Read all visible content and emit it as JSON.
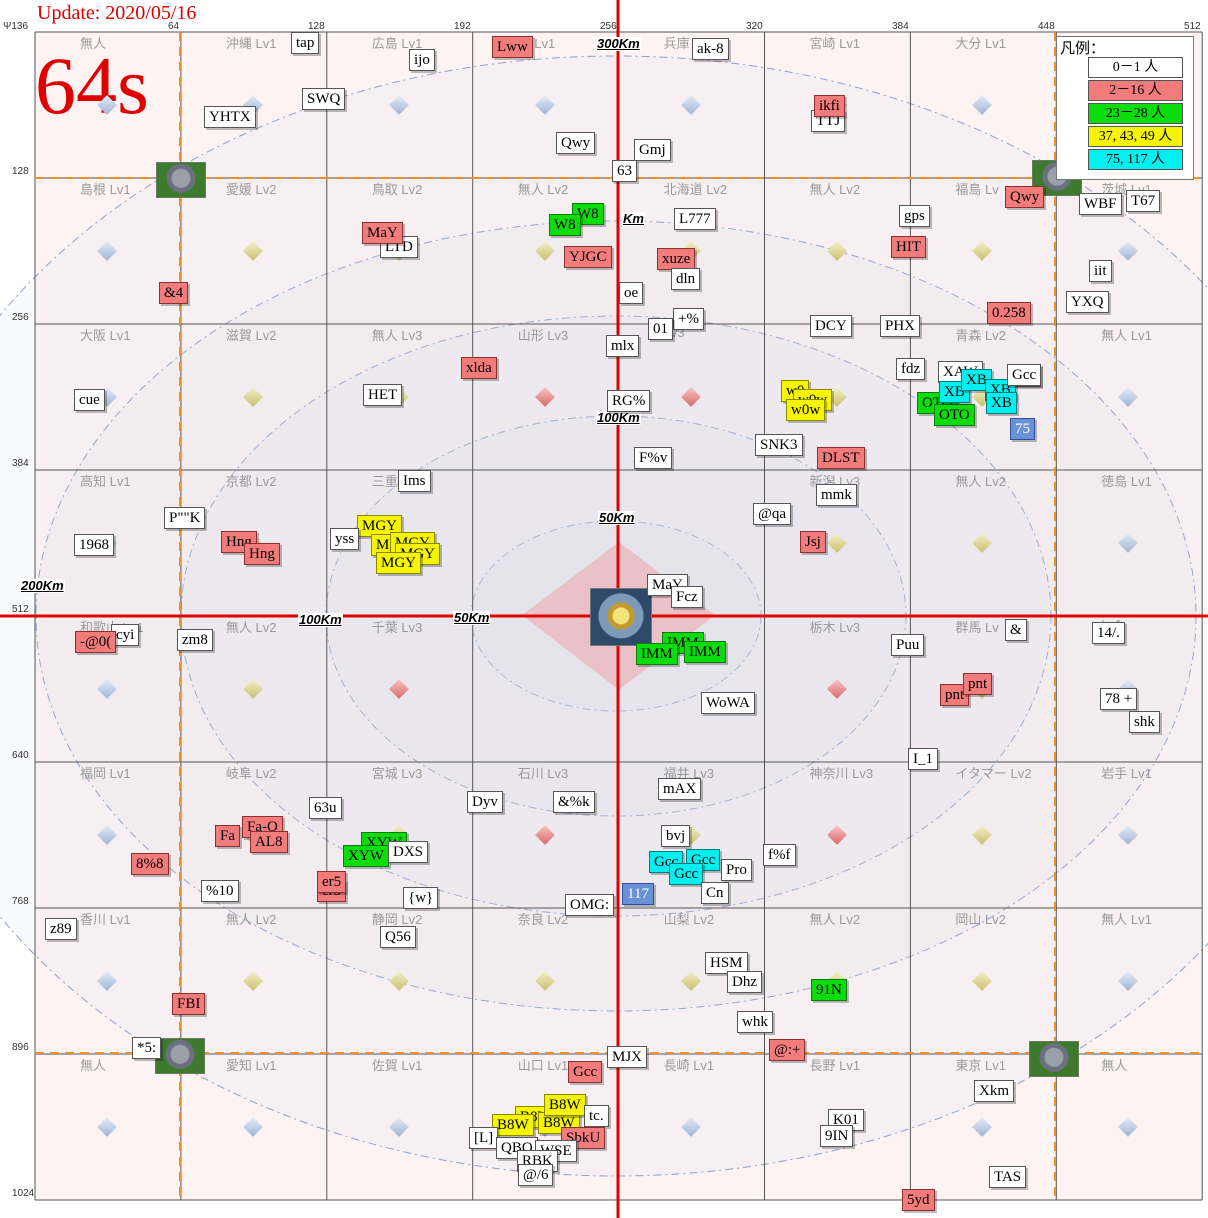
{
  "header": {
    "update": "Update: 2020/05/16",
    "timer": "64s"
  },
  "legend": {
    "title": "凡例：",
    "items": [
      {
        "label": "0－1 人",
        "color": "#ffffff"
      },
      {
        "label": "2－16 人",
        "color": "#f27b7b"
      },
      {
        "label": "23－28 人",
        "color": "#0bdc0b"
      },
      {
        "label": "37, 43, 49 人",
        "color": "#f5f500"
      },
      {
        "label": "75, 117 人",
        "color": "#00f0f0"
      }
    ]
  },
  "axis": {
    "x_ticks": [
      "Ψ136",
      "64",
      "128",
      "192",
      "256",
      "320",
      "384",
      "448",
      "512"
    ],
    "y_ticks": [
      "128",
      "256",
      "384",
      "512",
      "640",
      "768",
      "896",
      "1024"
    ]
  },
  "distance_labels": [
    "300Km",
    "200Km",
    "100Km",
    "50Km",
    "100Km",
    "50Km",
    "50Km",
    "Km",
    "200Km"
  ],
  "regions": [
    "無人",
    "沖縄 Lv1",
    "広島 Lv1",
    "島 Lv1",
    "兵庫",
    "宮崎 Lv1",
    "大分 Lv1",
    "",
    "島根 Lv1",
    "愛媛 Lv2",
    "鳥取 Lv2",
    "無人 Lv2",
    "北海道 Lv2",
    "無人 Lv2",
    "福島 Lv",
    "茨城 Lv1",
    "大阪 Lv1",
    "滋賀 Lv2",
    "無人 Lv3",
    "山形 Lv3",
    "Lv3",
    "3",
    "青森 Lv2",
    "無人 Lv1",
    "高知 Lv1",
    "京都 Lv2",
    "三重",
    "",
    "",
    "新潟 Lv3",
    "無人 Lv2",
    "徳島 Lv1",
    "和歌山 Lv1",
    "無人 Lv2",
    "千葉 Lv3",
    "",
    "",
    "栃木 Lv3",
    "群馬 Lv",
    "Lv1",
    "福岡 Lv1",
    "岐阜 Lv2",
    "宮城 Lv3",
    "石川 Lv3",
    "福井 Lv3",
    "神奈川 Lv3",
    "イタマー Lv2",
    "岩手 Lv1",
    "香川 Lv1",
    "無人 Lv2",
    "静岡 Lv2",
    "奈良 Lv2",
    "山梨 Lv2",
    "無人 Lv2",
    "岡山 Lv2",
    "無人 Lv1",
    "無人",
    "愛知 Lv1",
    "佐賀 Lv1",
    "山口 Lv1",
    "長崎 Lv1",
    "長野 Lv1",
    "東京 Lv1",
    "無人"
  ],
  "alliances": [
    {
      "name": "tap",
      "c": "w"
    },
    {
      "name": "ijo",
      "c": "w"
    },
    {
      "name": "Lww",
      "c": "r"
    },
    {
      "name": "ak-8",
      "c": "w"
    },
    {
      "name": "SWQ",
      "c": "w"
    },
    {
      "name": "YHTX",
      "c": "w"
    },
    {
      "name": "TTJ",
      "c": "w"
    },
    {
      "name": "ikfi",
      "c": "r"
    },
    {
      "name": "Qwy",
      "c": "w"
    },
    {
      "name": "Gmj",
      "c": "w"
    },
    {
      "name": "63",
      "c": "w"
    },
    {
      "name": "Qwy",
      "c": "r"
    },
    {
      "name": "WBF",
      "c": "w"
    },
    {
      "name": "T67",
      "c": "w"
    },
    {
      "name": "W8",
      "c": "g"
    },
    {
      "name": "W8",
      "c": "g"
    },
    {
      "name": "L777",
      "c": "w"
    },
    {
      "name": "gps",
      "c": "w"
    },
    {
      "name": "LTD",
      "c": "w"
    },
    {
      "name": "MaY",
      "c": "r"
    },
    {
      "name": "YJGC",
      "c": "r"
    },
    {
      "name": "xuze",
      "c": "r"
    },
    {
      "name": "HIT",
      "c": "r"
    },
    {
      "name": "dln",
      "c": "w"
    },
    {
      "name": "iit",
      "c": "w"
    },
    {
      "name": "&4",
      "c": "r"
    },
    {
      "name": "oe",
      "c": "w"
    },
    {
      "name": "YXQ",
      "c": "w"
    },
    {
      "name": "0.258",
      "c": "r"
    },
    {
      "name": "+%",
      "c": "w"
    },
    {
      "name": "01",
      "c": "w"
    },
    {
      "name": "DCY",
      "c": "w"
    },
    {
      "name": "PHX",
      "c": "w"
    },
    {
      "name": "mlx",
      "c": "w"
    },
    {
      "name": "xlda",
      "c": "r"
    },
    {
      "name": "fdz",
      "c": "w"
    },
    {
      "name": "XAW",
      "c": "w"
    },
    {
      "name": "Gcc",
      "c": "w"
    },
    {
      "name": "HET",
      "c": "w"
    },
    {
      "name": "cue",
      "c": "w"
    },
    {
      "name": "RG%",
      "c": "w"
    },
    {
      "name": "w0",
      "c": "y"
    },
    {
      "name": "w0w",
      "c": "y"
    },
    {
      "name": "w0w",
      "c": "y"
    },
    {
      "name": "OTO",
      "c": "g"
    },
    {
      "name": "OTO",
      "c": "g"
    },
    {
      "name": "XB",
      "c": "c"
    },
    {
      "name": "XB",
      "c": "c"
    },
    {
      "name": "XB",
      "c": "c"
    },
    {
      "name": "XB",
      "c": "c"
    },
    {
      "name": "75",
      "c": "b"
    },
    {
      "name": "SNK3",
      "c": "w"
    },
    {
      "name": "F%v",
      "c": "w"
    },
    {
      "name": "DLST",
      "c": "r"
    },
    {
      "name": "Ims",
      "c": "w"
    },
    {
      "name": "mmk",
      "c": "w"
    },
    {
      "name": "P\"\"K",
      "c": "w"
    },
    {
      "name": "@qa",
      "c": "w"
    },
    {
      "name": "MGY",
      "c": "y"
    },
    {
      "name": "yss",
      "c": "w"
    },
    {
      "name": "MGY",
      "c": "y"
    },
    {
      "name": "MGY",
      "c": "y"
    },
    {
      "name": "MGY",
      "c": "y"
    },
    {
      "name": "MGY",
      "c": "y"
    },
    {
      "name": "1968",
      "c": "w"
    },
    {
      "name": "Hng",
      "c": "r"
    },
    {
      "name": "Hng",
      "c": "r"
    },
    {
      "name": "Jsj",
      "c": "r"
    },
    {
      "name": "MaY",
      "c": "w"
    },
    {
      "name": "Fcz",
      "c": "w"
    },
    {
      "name": "&",
      "c": "w"
    },
    {
      "name": "14/.",
      "c": "w"
    },
    {
      "name": "cyi",
      "c": "w"
    },
    {
      "name": "-@0(",
      "c": "r"
    },
    {
      "name": "zm8",
      "c": "w"
    },
    {
      "name": "IMM",
      "c": "g"
    },
    {
      "name": "IMM",
      "c": "g"
    },
    {
      "name": "IMM",
      "c": "g"
    },
    {
      "name": "Puu",
      "c": "w"
    },
    {
      "name": "pnt",
      "c": "r"
    },
    {
      "name": "pnt",
      "c": "r"
    },
    {
      "name": "78 +",
      "c": "w"
    },
    {
      "name": "shk",
      "c": "w"
    },
    {
      "name": "WoWA",
      "c": "w"
    },
    {
      "name": "I_1",
      "c": "w"
    },
    {
      "name": "mAX",
      "c": "w"
    },
    {
      "name": "Dyv",
      "c": "w"
    },
    {
      "name": "&%k",
      "c": "w"
    },
    {
      "name": "63u",
      "c": "w"
    },
    {
      "name": "Fa-O",
      "c": "r"
    },
    {
      "name": "Fa",
      "c": "r"
    },
    {
      "name": "AL8",
      "c": "r"
    },
    {
      "name": "bvj",
      "c": "w"
    },
    {
      "name": "XYW",
      "c": "g"
    },
    {
      "name": "XYW",
      "c": "g"
    },
    {
      "name": "DXS",
      "c": "w"
    },
    {
      "name": "f%f",
      "c": "w"
    },
    {
      "name": "8%8",
      "c": "r"
    },
    {
      "name": "Gcc",
      "c": "c"
    },
    {
      "name": "Gcc",
      "c": "c"
    },
    {
      "name": "Gcc",
      "c": "c"
    },
    {
      "name": "Pro",
      "c": "w"
    },
    {
      "name": "er5",
      "c": "r"
    },
    {
      "name": "er5",
      "c": "r"
    },
    {
      "name": "%10",
      "c": "w"
    },
    {
      "name": "{w}",
      "c": "w"
    },
    {
      "name": "OMG:",
      "c": "w"
    },
    {
      "name": "117",
      "c": "b"
    },
    {
      "name": "z89",
      "c": "w"
    },
    {
      "name": "Q56",
      "c": "w"
    },
    {
      "name": "HSM",
      "c": "w"
    },
    {
      "name": "Dhz",
      "c": "w"
    },
    {
      "name": "91N",
      "c": "g"
    },
    {
      "name": "FBI",
      "c": "r"
    },
    {
      "name": "whk",
      "c": "w"
    },
    {
      "name": "*5:",
      "c": "w"
    },
    {
      "name": "@:+",
      "c": "r"
    },
    {
      "name": "MJX",
      "c": "w"
    },
    {
      "name": "Gcc",
      "c": "r"
    },
    {
      "name": "Xkm",
      "c": "w"
    },
    {
      "name": "B8W",
      "c": "y"
    },
    {
      "name": "B8W",
      "c": "y"
    },
    {
      "name": "B8W",
      "c": "y"
    },
    {
      "name": "B8W",
      "c": "y"
    },
    {
      "name": "tc.",
      "c": "w"
    },
    {
      "name": "SbkU",
      "c": "r"
    },
    {
      "name": "[L]",
      "c": "w"
    },
    {
      "name": "QBQ",
      "c": "w"
    },
    {
      "name": "WSE",
      "c": "w"
    },
    {
      "name": "RBK",
      "c": "w"
    },
    {
      "name": "@/6",
      "c": "w"
    },
    {
      "name": "K01",
      "c": "w"
    },
    {
      "name": "9IN",
      "c": "w"
    },
    {
      "name": "TAS",
      "c": "w"
    },
    {
      "name": "5yd",
      "c": "r"
    },
    {
      "name": "Cn",
      "c": "w"
    },
    {
      "name": "Gcc",
      "c": "w"
    }
  ],
  "colors": {
    "white": "#ffffff",
    "red": "#f27b7b",
    "green": "#0bdc0b",
    "yellow": "#f5f500",
    "cyan": "#00f0f0",
    "blue": "#6a90d8",
    "axis_red": "#e00000",
    "dash_orange": "#e8922a",
    "grid": "#555555",
    "cell_pink": "#fdf3f3"
  }
}
